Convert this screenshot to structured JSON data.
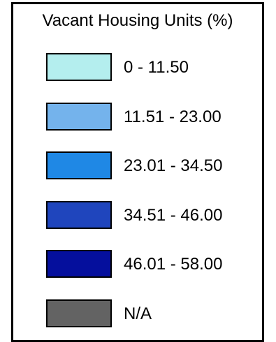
{
  "legend": {
    "title": "Vacant Housing Units (%)",
    "items": [
      {
        "label": "0 - 11.50",
        "color": "#b4eeee"
      },
      {
        "label": "11.51 - 23.00",
        "color": "#74b3ec"
      },
      {
        "label": "23.01 - 34.50",
        "color": "#1f88e5"
      },
      {
        "label": "34.51 - 46.00",
        "color": "#1f45bd"
      },
      {
        "label": "46.01 - 58.00",
        "color": "#050f9d"
      },
      {
        "label": "N/A",
        "color": "#636363"
      }
    ]
  }
}
